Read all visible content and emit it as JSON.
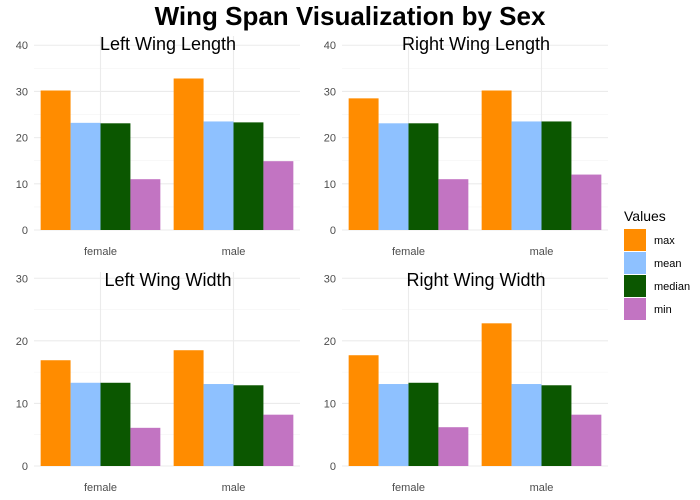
{
  "title": "Wing Span Visualization by Sex",
  "colors": {
    "max": "#FF8C00",
    "mean": "#8EC1FF",
    "median": "#0B5700",
    "min": "#C274C2",
    "grid_major": "#EBEBEB",
    "grid_minor": "#F4F4F4",
    "tick_text": "#4D4D4D"
  },
  "legend": {
    "title": "Values",
    "placement": "right",
    "items": [
      "max",
      "mean",
      "median",
      "min"
    ]
  },
  "chart_data": [
    {
      "type": "bar",
      "title": "Left Wing Length",
      "categories": [
        "female",
        "male"
      ],
      "series": [
        {
          "name": "max",
          "values": [
            30.2,
            32.8
          ]
        },
        {
          "name": "mean",
          "values": [
            23.2,
            23.5
          ]
        },
        {
          "name": "median",
          "values": [
            23.1,
            23.3
          ]
        },
        {
          "name": "min",
          "values": [
            11.0,
            14.9
          ]
        }
      ],
      "ylim": [
        0,
        42
      ],
      "yticks": [
        0,
        10,
        20,
        30,
        40
      ],
      "grid": true
    },
    {
      "type": "bar",
      "title": "Right Wing Length",
      "categories": [
        "female",
        "male"
      ],
      "series": [
        {
          "name": "max",
          "values": [
            28.5,
            30.2
          ]
        },
        {
          "name": "mean",
          "values": [
            23.1,
            23.5
          ]
        },
        {
          "name": "median",
          "values": [
            23.1,
            23.5
          ]
        },
        {
          "name": "min",
          "values": [
            11.0,
            12.0
          ]
        }
      ],
      "ylim": [
        0,
        42
      ],
      "yticks": [
        0,
        10,
        20,
        30,
        40
      ],
      "grid": true
    },
    {
      "type": "bar",
      "title": "Left Wing Width",
      "categories": [
        "female",
        "male"
      ],
      "series": [
        {
          "name": "max",
          "values": [
            16.9,
            18.5
          ]
        },
        {
          "name": "mean",
          "values": [
            13.3,
            13.1
          ]
        },
        {
          "name": "median",
          "values": [
            13.3,
            12.9
          ]
        },
        {
          "name": "min",
          "values": [
            6.1,
            8.2
          ]
        }
      ],
      "ylim": [
        0,
        31
      ],
      "yticks": [
        0,
        10,
        20,
        30
      ],
      "grid": true
    },
    {
      "type": "bar",
      "title": "Right Wing Width",
      "categories": [
        "female",
        "male"
      ],
      "series": [
        {
          "name": "max",
          "values": [
            17.7,
            22.8
          ]
        },
        {
          "name": "mean",
          "values": [
            13.1,
            13.1
          ]
        },
        {
          "name": "median",
          "values": [
            13.3,
            12.9
          ]
        },
        {
          "name": "min",
          "values": [
            6.2,
            8.2
          ]
        }
      ],
      "ylim": [
        0,
        31
      ],
      "yticks": [
        0,
        10,
        20,
        30
      ],
      "grid": true
    }
  ]
}
